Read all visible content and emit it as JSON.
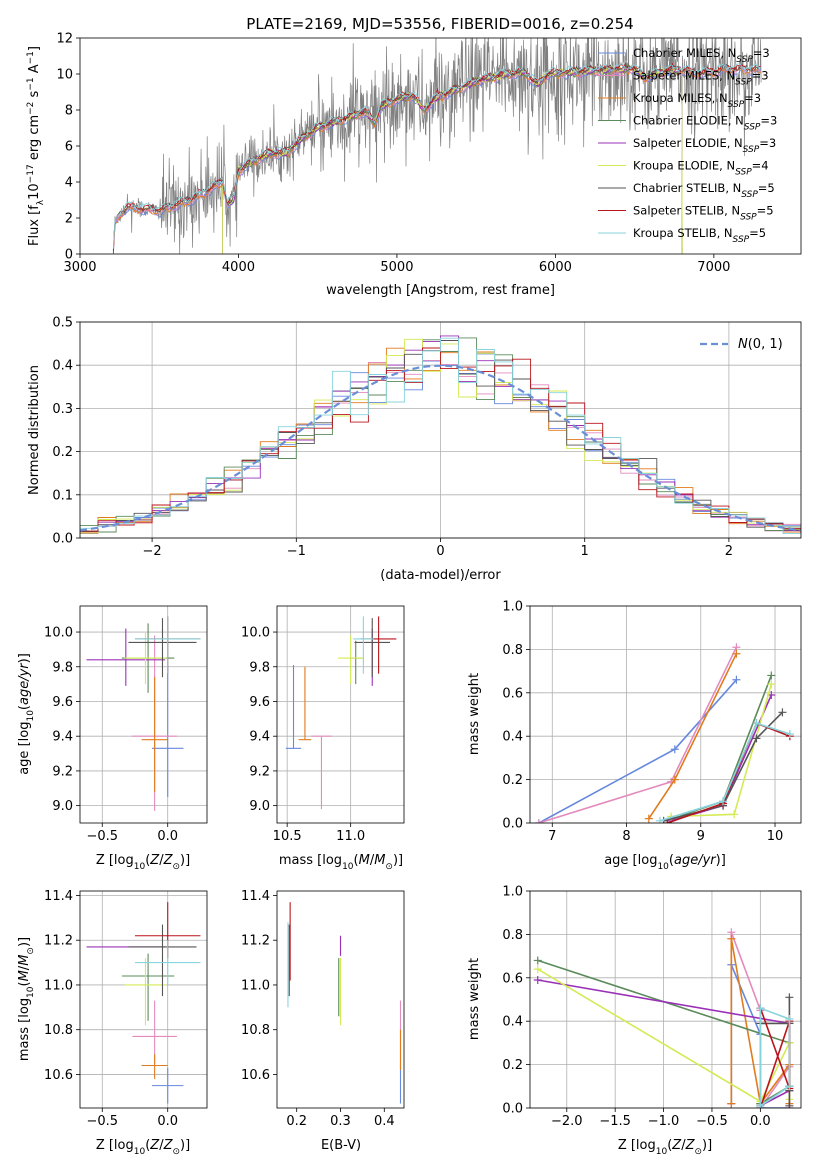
{
  "figure_title": "PLATE=2169, MJD=53556, FIBERID=0016, z=0.254",
  "colors": {
    "chabrier_miles": "#6688dd",
    "salpeter_miles": "#e48bbd",
    "kroupa_miles": "#e07b1e",
    "chabrier_elodie": "#5b8a5b",
    "salpeter_elodie": "#9b30b8",
    "kroupa_elodie": "#d4ea55",
    "chabrier_stelib": "#555555",
    "salpeter_stelib": "#b8141c",
    "kroupa_stelib": "#88d4dd",
    "data": "#808080",
    "gauss": "#6a8fd6",
    "grid": "#b0b0b0"
  },
  "chart_data": [
    {
      "id": "spectrum",
      "type": "line",
      "xlabel": "wavelength [Angstrom, rest frame]",
      "ylabel": "Flux [f_λ 10^-17 erg cm^-2 s^-1 A^-1]",
      "xlim": [
        3000,
        7550
      ],
      "ylim": [
        0,
        12
      ],
      "xticks": [
        3000,
        4000,
        5000,
        6000,
        7000
      ],
      "yticks": [
        0,
        2,
        4,
        6,
        8,
        10,
        12
      ],
      "grid": false,
      "legend_position": "top-right",
      "legend": [
        {
          "base": "Chabrier MILES, N",
          "sub": "SSP",
          "tail": "=3",
          "color_key": "chabrier_miles"
        },
        {
          "base": "Salpeter MILES, N",
          "sub": "SSP",
          "tail": "=3",
          "color_key": "salpeter_miles"
        },
        {
          "base": "Kroupa MILES, N",
          "sub": "SSP",
          "tail": "=3",
          "color_key": "kroupa_miles"
        },
        {
          "base": "Chabrier ELODIE, N",
          "sub": "SSP",
          "tail": "=3",
          "color_key": "chabrier_elodie"
        },
        {
          "base": "Salpeter ELODIE, N",
          "sub": "SSP",
          "tail": "=3",
          "color_key": "salpeter_elodie"
        },
        {
          "base": "Kroupa ELODIE, N",
          "sub": "SSP",
          "tail": "=4",
          "color_key": "kroupa_elodie"
        },
        {
          "base": "Chabrier STELIB, N",
          "sub": "SSP",
          "tail": "=5",
          "color_key": "chabrier_stelib"
        },
        {
          "base": "Salpeter STELIB, N",
          "sub": "SSP",
          "tail": "=5",
          "color_key": "salpeter_stelib"
        },
        {
          "base": "Kroupa STELIB, N",
          "sub": "SSP",
          "tail": "=5",
          "color_key": "kroupa_stelib"
        }
      ],
      "continuum": [
        [
          3210,
          0
        ],
        [
          3220,
          1.7
        ],
        [
          3250,
          2.2
        ],
        [
          3300,
          2.6
        ],
        [
          3400,
          2.5
        ],
        [
          3500,
          2.4
        ],
        [
          3600,
          2.7
        ],
        [
          3700,
          3.0
        ],
        [
          3800,
          3.5
        ],
        [
          3900,
          4.0
        ],
        [
          3930,
          2.8
        ],
        [
          3970,
          3.0
        ],
        [
          4000,
          4.6
        ],
        [
          4100,
          5.2
        ],
        [
          4200,
          5.6
        ],
        [
          4300,
          5.6
        ],
        [
          4400,
          6.4
        ],
        [
          4500,
          7.0
        ],
        [
          4600,
          7.3
        ],
        [
          4700,
          7.6
        ],
        [
          4800,
          7.9
        ],
        [
          4860,
          7.3
        ],
        [
          4900,
          8.2
        ],
        [
          5000,
          8.6
        ],
        [
          5100,
          8.8
        ],
        [
          5175,
          8.0
        ],
        [
          5250,
          8.7
        ],
        [
          5400,
          9.2
        ],
        [
          5500,
          9.6
        ],
        [
          5600,
          9.8
        ],
        [
          5700,
          10.0
        ],
        [
          5800,
          10.1
        ],
        [
          5890,
          9.4
        ],
        [
          5950,
          10.0
        ],
        [
          6100,
          10.1
        ],
        [
          6300,
          10.2
        ],
        [
          6500,
          10.3
        ],
        [
          6563,
          9.8
        ],
        [
          6700,
          10.2
        ],
        [
          6800,
          10.2
        ],
        [
          6900,
          10.0
        ],
        [
          7100,
          10.3
        ],
        [
          7300,
          10.2
        ]
      ],
      "data_noise_ranges": [
        [
          3210,
          3500,
          0.3
        ],
        [
          3500,
          3950,
          1.3
        ],
        [
          3950,
          4500,
          0.8
        ],
        [
          4500,
          5200,
          1.5
        ],
        [
          5200,
          7300,
          1.7
        ]
      ]
    },
    {
      "id": "residuals",
      "type": "histogram",
      "xlabel": "(data-model)/error",
      "ylabel": "Normed distribution",
      "xlim": [
        -2.5,
        2.5
      ],
      "ylim": [
        0,
        0.5
      ],
      "xticks": [
        -2,
        -1,
        0,
        1,
        2
      ],
      "yticks": [
        0.0,
        0.1,
        0.2,
        0.3,
        0.4,
        0.5
      ],
      "grid": true,
      "bins": 40,
      "legend_position": "top-right",
      "legend_label": "N(0, 1)",
      "gaussian": {
        "mean": 0,
        "sigma": 1
      }
    },
    {
      "id": "age_vs_Z",
      "type": "errorbar",
      "xlabel": "Z [log10(Z/Z⊙)]",
      "ylabel": "age [log10(age/yr)]",
      "xlim": [
        -0.67,
        0.3
      ],
      "ylim": [
        8.9,
        10.15
      ],
      "xticks": [
        -0.5,
        0.0
      ],
      "yticks": [
        9.0,
        9.2,
        9.4,
        9.6,
        9.8,
        10.0
      ],
      "grid": true,
      "points": [
        {
          "color_key": "chabrier_miles",
          "x": 0.0,
          "y": 9.33,
          "xerr": 0.12,
          "yerr_lo": 0.28,
          "yerr_hi": 0.48
        },
        {
          "color_key": "salpeter_miles",
          "x": -0.1,
          "y": 9.4,
          "xerr": 0.17,
          "yerr_lo": 0.43,
          "yerr_hi": 0.58
        },
        {
          "color_key": "kroupa_miles",
          "x": -0.1,
          "y": 9.38,
          "xerr": 0.1,
          "yerr_lo": 0.3,
          "yerr_hi": 0.36
        },
        {
          "color_key": "chabrier_elodie",
          "x": -0.15,
          "y": 9.85,
          "xerr": 0.2,
          "yerr_lo": 0.2,
          "yerr_hi": 0.2
        },
        {
          "color_key": "salpeter_elodie",
          "x": -0.32,
          "y": 9.84,
          "xerr": 0.3,
          "yerr_lo": 0.15,
          "yerr_hi": 0.18
        },
        {
          "color_key": "kroupa_elodie",
          "x": -0.17,
          "y": 9.85,
          "xerr": 0.16,
          "yerr_lo": 0.15,
          "yerr_hi": 0.15
        },
        {
          "color_key": "chabrier_stelib",
          "x": -0.04,
          "y": 9.94,
          "xerr": 0.26,
          "yerr_lo": 0.2,
          "yerr_hi": 0.14
        },
        {
          "color_key": "salpeter_stelib",
          "x": 0.0,
          "y": 9.96,
          "xerr": 0.25,
          "yerr_lo": 0.2,
          "yerr_hi": 0.13
        },
        {
          "color_key": "kroupa_stelib",
          "x": 0.0,
          "y": 9.96,
          "xerr": 0.25,
          "yerr_lo": 0.2,
          "yerr_hi": 0.13
        }
      ]
    },
    {
      "id": "age_vs_mass",
      "type": "errorbar",
      "xlabel": "mass [log10(M/M⊙)]",
      "ylabel": "",
      "xlim": [
        10.42,
        11.42
      ],
      "ylim": [
        8.9,
        10.15
      ],
      "xticks": [
        10.5,
        11.0
      ],
      "yticks": [
        9.0,
        9.2,
        9.4,
        9.6,
        9.8,
        10.0
      ],
      "grid": true,
      "points": [
        {
          "color_key": "chabrier_miles",
          "x": 10.55,
          "y": 9.33,
          "xerr": 0.06,
          "yerr_lo": 0.0,
          "yerr_hi": 0.48
        },
        {
          "color_key": "salpeter_miles",
          "x": 10.77,
          "y": 9.4,
          "xerr": 0.08,
          "yerr_lo": 0.42,
          "yerr_hi": 0.0
        },
        {
          "color_key": "kroupa_miles",
          "x": 10.64,
          "y": 9.38,
          "xerr": 0.05,
          "yerr_lo": 0.0,
          "yerr_hi": 0.42
        },
        {
          "color_key": "chabrier_elodie",
          "x": 11.04,
          "y": 9.85,
          "xerr": 0.05,
          "yerr_lo": 0.15,
          "yerr_hi": 0.1
        },
        {
          "color_key": "salpeter_elodie",
          "x": 11.17,
          "y": 9.84,
          "xerr": 0.0,
          "yerr_lo": 0.15,
          "yerr_hi": 0.18
        },
        {
          "color_key": "kroupa_elodie",
          "x": 11.0,
          "y": 9.85,
          "xerr": 0.1,
          "yerr_lo": 0.15,
          "yerr_hi": 0.13
        },
        {
          "color_key": "chabrier_stelib",
          "x": 11.17,
          "y": 9.94,
          "xerr": 0.14,
          "yerr_lo": 0.2,
          "yerr_hi": 0.14
        },
        {
          "color_key": "salpeter_stelib",
          "x": 11.22,
          "y": 9.96,
          "xerr": 0.14,
          "yerr_lo": 0.2,
          "yerr_hi": 0.13
        },
        {
          "color_key": "kroupa_stelib",
          "x": 11.1,
          "y": 9.96,
          "xerr": 0.08,
          "yerr_lo": 0.2,
          "yerr_hi": 0.13
        }
      ]
    },
    {
      "id": "weight_vs_age",
      "type": "line",
      "xlabel": "age [log10(age/yr)]",
      "ylabel": "mass weight",
      "xlim": [
        6.7,
        10.35
      ],
      "ylim": [
        0,
        1.0
      ],
      "xticks": [
        7,
        8,
        9,
        10
      ],
      "yticks": [
        0.0,
        0.2,
        0.4,
        0.6,
        0.8,
        1.0
      ],
      "grid": true,
      "series": [
        {
          "color_key": "chabrier_miles",
          "x": [
            6.82,
            8.65,
            9.48
          ],
          "y": [
            0.0,
            0.34,
            0.66
          ]
        },
        {
          "color_key": "salpeter_miles",
          "x": [
            6.82,
            8.6,
            9.48
          ],
          "y": [
            0.0,
            0.19,
            0.81
          ]
        },
        {
          "color_key": "kroupa_miles",
          "x": [
            8.3,
            8.65,
            9.48
          ],
          "y": [
            0.02,
            0.2,
            0.78
          ]
        },
        {
          "color_key": "chabrier_elodie",
          "x": [
            8.6,
            9.3,
            9.95
          ],
          "y": [
            0.02,
            0.1,
            0.68
          ]
        },
        {
          "color_key": "salpeter_elodie",
          "x": [
            8.6,
            9.3,
            9.95
          ],
          "y": [
            0.01,
            0.08,
            0.59
          ]
        },
        {
          "color_key": "kroupa_elodie",
          "x": [
            8.6,
            9.45,
            9.95
          ],
          "y": [
            0.03,
            0.04,
            0.64
          ]
        },
        {
          "color_key": "chabrier_stelib",
          "x": [
            8.5,
            9.3,
            9.75,
            10.1
          ],
          "y": [
            0.01,
            0.08,
            0.39,
            0.51
          ]
        },
        {
          "color_key": "salpeter_stelib",
          "x": [
            8.55,
            9.3,
            9.75,
            10.2
          ],
          "y": [
            0.0,
            0.09,
            0.46,
            0.4
          ]
        },
        {
          "color_key": "kroupa_stelib",
          "x": [
            8.45,
            9.3,
            9.75,
            10.2
          ],
          "y": [
            0.01,
            0.1,
            0.46,
            0.41
          ]
        }
      ]
    },
    {
      "id": "mass_vs_Z",
      "type": "errorbar",
      "xlabel": "Z [log10(Z/Z⊙)]",
      "ylabel": "mass [log10(M/M⊙)]",
      "xlim": [
        -0.67,
        0.3
      ],
      "ylim": [
        10.45,
        11.42
      ],
      "xticks": [
        -0.5,
        0.0
      ],
      "yticks": [
        10.6,
        10.8,
        11.0,
        11.2,
        11.4
      ],
      "grid": true,
      "points": [
        {
          "color_key": "chabrier_miles",
          "x": 0.0,
          "y": 10.55,
          "xerr": 0.12,
          "yerr_lo": 0.08,
          "yerr_hi": 0.08
        },
        {
          "color_key": "salpeter_miles",
          "x": -0.1,
          "y": 10.77,
          "xerr": 0.17,
          "yerr_lo": 0.12,
          "yerr_hi": 0.16
        },
        {
          "color_key": "kroupa_miles",
          "x": -0.1,
          "y": 10.64,
          "xerr": 0.1,
          "yerr_lo": 0.06,
          "yerr_hi": 0.05
        },
        {
          "color_key": "chabrier_elodie",
          "x": -0.15,
          "y": 11.04,
          "xerr": 0.2,
          "yerr_lo": 0.2,
          "yerr_hi": 0.1
        },
        {
          "color_key": "salpeter_elodie",
          "x": -0.32,
          "y": 11.17,
          "xerr": 0.3,
          "yerr_lo": 0.0,
          "yerr_hi": 0.0
        },
        {
          "color_key": "kroupa_elodie",
          "x": -0.17,
          "y": 11.0,
          "xerr": 0.16,
          "yerr_lo": 0.18,
          "yerr_hi": 0.12
        },
        {
          "color_key": "chabrier_stelib",
          "x": -0.04,
          "y": 11.17,
          "xerr": 0.26,
          "yerr_lo": 0.22,
          "yerr_hi": 0.1
        },
        {
          "color_key": "salpeter_stelib",
          "x": 0.0,
          "y": 11.22,
          "xerr": 0.25,
          "yerr_lo": 0.1,
          "yerr_hi": 0.15
        },
        {
          "color_key": "kroupa_stelib",
          "x": 0.0,
          "y": 11.1,
          "xerr": 0.25,
          "yerr_lo": 0.1,
          "yerr_hi": 0.1
        }
      ]
    },
    {
      "id": "mass_vs_EBV",
      "type": "errorbar",
      "xlabel": "E(B-V)",
      "ylabel": "",
      "xlim": [
        0.155,
        0.445
      ],
      "ylim": [
        10.45,
        11.42
      ],
      "xticks": [
        0.2,
        0.3,
        0.4
      ],
      "yticks": [
        10.6,
        10.8,
        11.0,
        11.2,
        11.4
      ],
      "grid": false,
      "points": [
        {
          "color_key": "chabrier_miles",
          "x": 0.437,
          "y": 10.6,
          "xerr": 0.0,
          "yerr_lo": 0.13,
          "yerr_hi": 0.05
        },
        {
          "color_key": "salpeter_miles",
          "x": 0.437,
          "y": 10.75,
          "xerr": 0.0,
          "yerr_lo": 0.1,
          "yerr_hi": 0.18
        },
        {
          "color_key": "kroupa_miles",
          "x": 0.437,
          "y": 10.7,
          "xerr": 0.0,
          "yerr_lo": 0.08,
          "yerr_hi": 0.1
        },
        {
          "color_key": "chabrier_elodie",
          "x": 0.296,
          "y": 11.0,
          "xerr": 0.0,
          "yerr_lo": 0.14,
          "yerr_hi": 0.12
        },
        {
          "color_key": "salpeter_elodie",
          "x": 0.3,
          "y": 11.17,
          "xerr": 0.0,
          "yerr_lo": 0.04,
          "yerr_hi": 0.05
        },
        {
          "color_key": "kroupa_elodie",
          "x": 0.3,
          "y": 11.0,
          "xerr": 0.0,
          "yerr_lo": 0.18,
          "yerr_hi": 0.12
        },
        {
          "color_key": "chabrier_stelib",
          "x": 0.183,
          "y": 11.17,
          "xerr": 0.0,
          "yerr_lo": 0.22,
          "yerr_hi": 0.1
        },
        {
          "color_key": "salpeter_stelib",
          "x": 0.185,
          "y": 11.22,
          "xerr": 0.0,
          "yerr_lo": 0.2,
          "yerr_hi": 0.15
        },
        {
          "color_key": "kroupa_stelib",
          "x": 0.18,
          "y": 11.1,
          "xerr": 0.0,
          "yerr_lo": 0.2,
          "yerr_hi": 0.18
        }
      ]
    },
    {
      "id": "weight_vs_Z",
      "type": "line",
      "xlabel": "Z [log10(Z/Z⊙)]",
      "ylabel": "mass weight",
      "xlim": [
        -2.38,
        0.42
      ],
      "ylim": [
        0,
        1.0
      ],
      "xticks": [
        -2.0,
        -1.5,
        -1.0,
        -0.5,
        0.0
      ],
      "yticks": [
        0.0,
        0.2,
        0.4,
        0.6,
        0.8,
        1.0
      ],
      "grid": true,
      "series": [
        {
          "color_key": "chabrier_miles",
          "x": [
            -0.3,
            -0.3,
            0.0,
            0.0,
            0.3,
            0.3
          ],
          "y": [
            0.02,
            0.66,
            0.34,
            0.0,
            0.0,
            0.1
          ]
        },
        {
          "color_key": "salpeter_miles",
          "x": [
            -0.3,
            -0.3,
            0.0,
            0.0,
            0.3,
            0.3
          ],
          "y": [
            0.02,
            0.81,
            0.45,
            0.0,
            0.19,
            0.0
          ]
        },
        {
          "color_key": "kroupa_miles",
          "x": [
            -0.3,
            -0.3,
            0.0,
            0.3,
            0.3
          ],
          "y": [
            0.02,
            0.78,
            0.02,
            0.2,
            0.02
          ]
        },
        {
          "color_key": "chabrier_elodie",
          "x": [
            -2.3,
            0.3,
            0.3,
            0.0,
            0.0
          ],
          "y": [
            0.68,
            0.3,
            0.1,
            0.02,
            0.02
          ]
        },
        {
          "color_key": "salpeter_elodie",
          "x": [
            -2.3,
            0.3,
            0.3,
            0.0
          ],
          "y": [
            0.59,
            0.39,
            0.08,
            0.01
          ]
        },
        {
          "color_key": "kroupa_elodie",
          "x": [
            -2.3,
            0.0,
            0.3,
            0.3
          ],
          "y": [
            0.64,
            0.03,
            0.3,
            0.04
          ]
        },
        {
          "color_key": "chabrier_stelib",
          "x": [
            0.0,
            0.3,
            0.3,
            0.3,
            0.3
          ],
          "y": [
            0.39,
            0.39,
            0.51,
            0.08,
            0.01
          ]
        },
        {
          "color_key": "salpeter_stelib",
          "x": [
            0.0,
            0.3,
            0.3,
            0.0
          ],
          "y": [
            0.0,
            0.4,
            0.09,
            0.46
          ]
        },
        {
          "color_key": "kroupa_stelib",
          "x": [
            0.0,
            0.3,
            0.3,
            0.0,
            0.0
          ],
          "y": [
            0.01,
            0.1,
            0.41,
            0.46,
            0.0
          ]
        }
      ]
    }
  ]
}
